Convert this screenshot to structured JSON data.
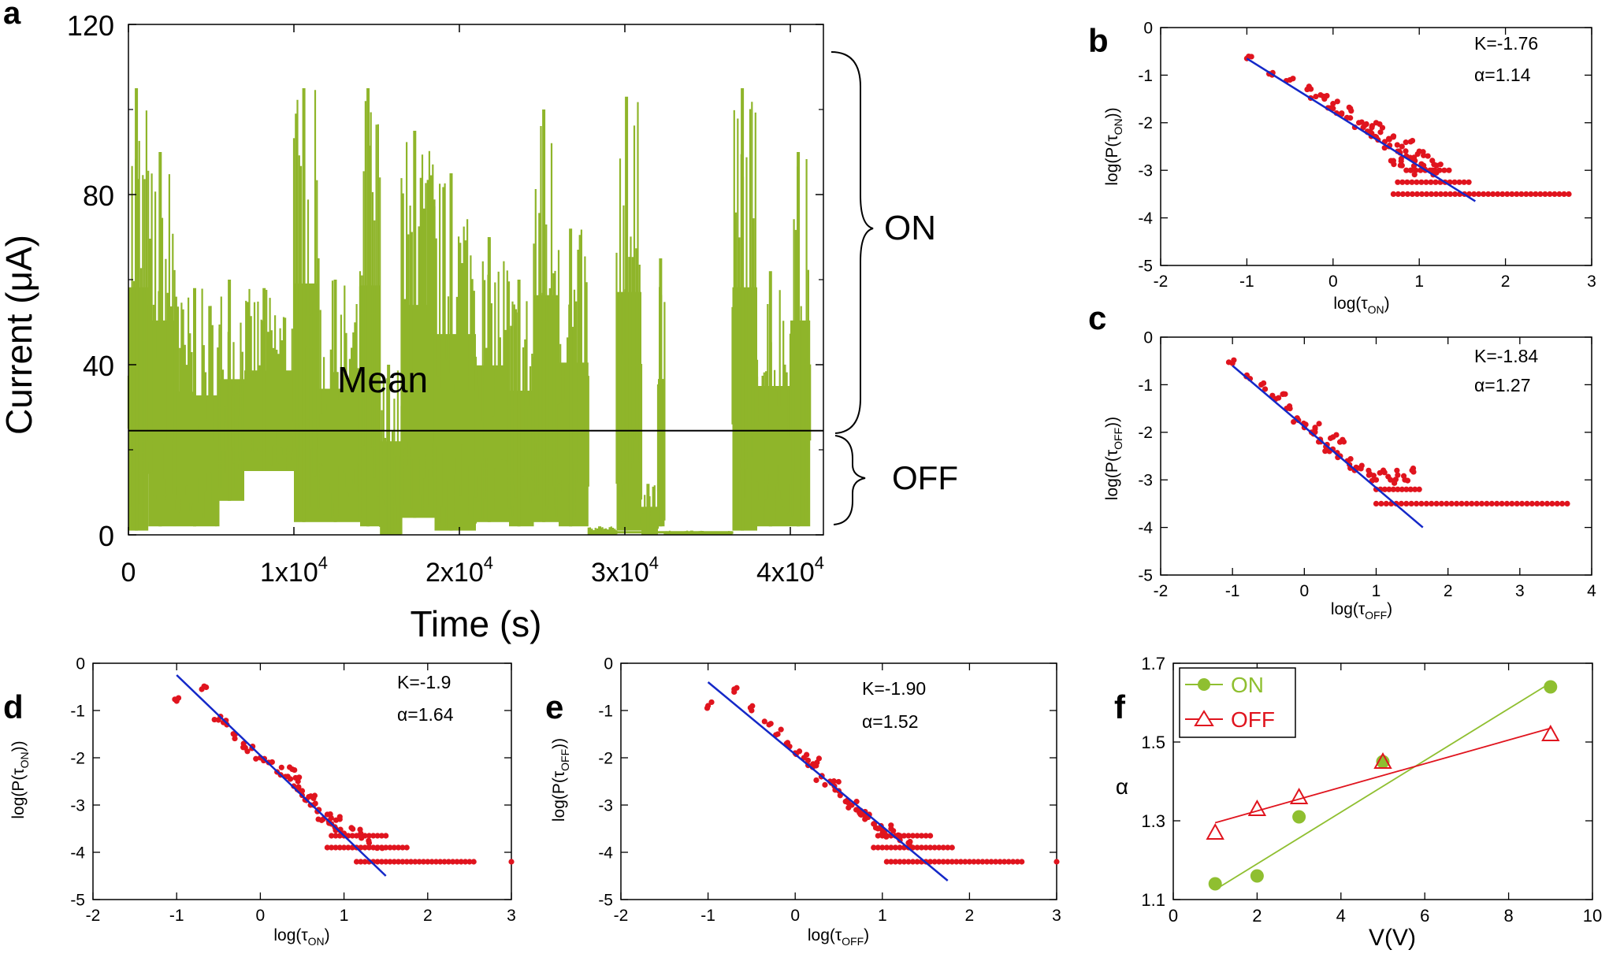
{
  "chart_data": [
    {
      "id": "a",
      "panel": "a",
      "type": "line",
      "xlabel": "Time (s)",
      "ylabel": "Current (μA)",
      "xlim": [
        0,
        42000
      ],
      "ylim": [
        0,
        120
      ],
      "xticks": [
        0,
        10000,
        20000,
        30000,
        40000
      ],
      "xtick_base": [
        "0",
        "1x10",
        "2x10",
        "3x10",
        "4x10"
      ],
      "xtick_exp": [
        "",
        "4",
        "4",
        "4",
        "4"
      ],
      "yticks": [
        0,
        40,
        80,
        120
      ],
      "ytick_labels": [
        "0",
        "40",
        "80",
        "120"
      ],
      "mean_value": 24.5,
      "mean_label": "Mean",
      "on_label": "ON",
      "off_label": "OFF",
      "color": "#8fb52a",
      "segments": [
        {
          "t0": 0,
          "t1": 1200,
          "lo": 1,
          "hi": 105
        },
        {
          "t0": 1200,
          "t1": 3000,
          "lo": 2,
          "hi": 90
        },
        {
          "t0": 3000,
          "t1": 5500,
          "lo": 2,
          "hi": 58
        },
        {
          "t0": 5500,
          "t1": 7000,
          "lo": 8,
          "hi": 60
        },
        {
          "t0": 7000,
          "t1": 10000,
          "lo": 15,
          "hi": 58
        },
        {
          "t0": 10000,
          "t1": 11500,
          "lo": 3,
          "hi": 105
        },
        {
          "t0": 11500,
          "t1": 14000,
          "lo": 3,
          "hi": 60
        },
        {
          "t0": 14000,
          "t1": 15200,
          "lo": 2,
          "hi": 105
        },
        {
          "t0": 15200,
          "t1": 16500,
          "lo": 0,
          "hi": 40
        },
        {
          "t0": 16500,
          "t1": 18500,
          "lo": 4,
          "hi": 95
        },
        {
          "t0": 18500,
          "t1": 21000,
          "lo": 1,
          "hi": 85
        },
        {
          "t0": 21000,
          "t1": 23000,
          "lo": 3,
          "hi": 70
        },
        {
          "t0": 23000,
          "t1": 24500,
          "lo": 2,
          "hi": 60
        },
        {
          "t0": 24500,
          "t1": 26000,
          "lo": 3,
          "hi": 100
        },
        {
          "t0": 26000,
          "t1": 27800,
          "lo": 2,
          "hi": 72
        },
        {
          "t0": 27800,
          "t1": 29500,
          "lo": 0,
          "hi": 2
        },
        {
          "t0": 29500,
          "t1": 31000,
          "lo": 1,
          "hi": 103
        },
        {
          "t0": 31000,
          "t1": 32000,
          "lo": 0,
          "hi": 12
        },
        {
          "t0": 32000,
          "t1": 32400,
          "lo": 2,
          "hi": 65
        },
        {
          "t0": 32400,
          "t1": 36500,
          "lo": 0,
          "hi": 1
        },
        {
          "t0": 36500,
          "t1": 38000,
          "lo": 1,
          "hi": 105
        },
        {
          "t0": 38000,
          "t1": 40000,
          "lo": 2,
          "hi": 62
        },
        {
          "t0": 40000,
          "t1": 41200,
          "lo": 2,
          "hi": 90
        }
      ]
    },
    {
      "id": "b",
      "panel": "b",
      "type": "scatter",
      "xlabel_main": "log(τ",
      "xlabel_sub": "ON",
      "xlabel_end": ")",
      "ylabel_main": "log(P(τ",
      "ylabel_sub": "ON",
      "ylabel_end": "))",
      "xlim": [
        -2,
        3
      ],
      "ylim": [
        -5,
        0
      ],
      "xticks": [
        -2,
        -1,
        0,
        1,
        2,
        3
      ],
      "xtick_labels": [
        "-2",
        "-1",
        "0",
        "1",
        "2",
        "3"
      ],
      "yticks": [
        -5,
        -4,
        -3,
        -2,
        -1,
        0
      ],
      "ytick_labels": [
        "-5",
        "-4",
        "-3",
        "-2",
        "-1",
        "0"
      ],
      "annotation_k": "K=-1.76",
      "annotation_alpha": "α=1.14",
      "fit_line": [
        [
          -1.0,
          -0.65
        ],
        [
          1.65,
          -3.65
        ]
      ],
      "point_color": "#e0141e",
      "fit_color": "#1428c8",
      "points_head": [
        [
          -1.0,
          -0.65
        ],
        [
          -0.7,
          -0.95
        ],
        [
          -0.5,
          -1.1
        ],
        [
          -0.3,
          -1.3
        ],
        [
          -0.2,
          -1.45
        ],
        [
          -0.1,
          -1.5
        ],
        [
          0.0,
          -1.7
        ],
        [
          0.1,
          -1.8
        ],
        [
          0.2,
          -1.9
        ],
        [
          0.3,
          -2.0
        ],
        [
          0.35,
          -2.1
        ],
        [
          0.4,
          -2.2
        ],
        [
          0.45,
          -2.1
        ],
        [
          0.5,
          -2.3
        ],
        [
          0.55,
          -2.2
        ],
        [
          0.6,
          -2.4
        ],
        [
          0.65,
          -2.5
        ],
        [
          0.7,
          -2.3
        ],
        [
          0.75,
          -2.6
        ],
        [
          0.8,
          -2.5
        ],
        [
          0.85,
          -2.7
        ],
        [
          0.9,
          -2.4
        ],
        [
          0.95,
          -2.8
        ],
        [
          1.0,
          -2.6
        ],
        [
          1.05,
          -2.9
        ],
        [
          1.1,
          -2.7
        ],
        [
          1.15,
          -3.0
        ],
        [
          1.2,
          -2.9
        ],
        [
          0.8,
          -2.9
        ],
        [
          0.9,
          -3.0
        ],
        [
          0.7,
          -2.8
        ],
        [
          0.2,
          -1.7
        ],
        [
          0.5,
          -2.0
        ],
        [
          0.0,
          -1.6
        ]
      ],
      "bands": [
        {
          "y": -3.5,
          "x0": 0.7,
          "x1": 2.75,
          "step": 0.055
        },
        {
          "y": -3.25,
          "x0": 0.75,
          "x1": 1.6,
          "step": 0.055
        },
        {
          "y": -3.0,
          "x0": 0.85,
          "x1": 1.35,
          "step": 0.055
        }
      ]
    },
    {
      "id": "c",
      "panel": "c",
      "type": "scatter",
      "xlabel_main": "log(τ",
      "xlabel_sub": "OFF",
      "xlabel_end": ")",
      "ylabel_main": "log(P(τ",
      "ylabel_sub": "OFF",
      "ylabel_end": "))",
      "xlim": [
        -2,
        4
      ],
      "ylim": [
        -5,
        0
      ],
      "xticks": [
        -2,
        -1,
        0,
        1,
        2,
        3,
        4
      ],
      "xtick_labels": [
        "-2",
        "-1",
        "0",
        "1",
        "2",
        "3",
        "4"
      ],
      "yticks": [
        -5,
        -4,
        -3,
        -2,
        -1,
        0
      ],
      "ytick_labels": [
        "-5",
        "-4",
        "-3",
        "-2",
        "-1",
        "0"
      ],
      "annotation_k": "K=-1.84",
      "annotation_alpha": "α=1.27",
      "fit_line": [
        [
          -1.0,
          -0.6
        ],
        [
          1.65,
          -4.0
        ]
      ],
      "point_color": "#e0141e",
      "fit_color": "#1428c8",
      "points_head": [
        [
          -1.0,
          -0.55
        ],
        [
          -0.8,
          -0.8
        ],
        [
          -0.6,
          -1.0
        ],
        [
          -0.4,
          -1.3
        ],
        [
          -0.2,
          -1.5
        ],
        [
          -0.1,
          -1.7
        ],
        [
          0.0,
          -1.9
        ],
        [
          0.1,
          -2.0
        ],
        [
          0.2,
          -2.2
        ],
        [
          0.3,
          -2.3
        ],
        [
          0.4,
          -2.1
        ],
        [
          0.5,
          -2.5
        ],
        [
          0.6,
          -2.6
        ],
        [
          0.7,
          -2.8
        ],
        [
          0.8,
          -2.7
        ],
        [
          0.9,
          -2.9
        ],
        [
          1.0,
          -3.0
        ],
        [
          1.1,
          -2.8
        ],
        [
          1.2,
          -3.0
        ],
        [
          1.3,
          -2.9
        ],
        [
          1.4,
          -3.0
        ],
        [
          1.5,
          -2.8
        ],
        [
          0.35,
          -2.4
        ],
        [
          0.55,
          -2.2
        ],
        [
          0.15,
          -1.9
        ],
        [
          -0.3,
          -1.2
        ]
      ],
      "bands": [
        {
          "y": -3.5,
          "x0": 1.0,
          "x1": 3.7,
          "step": 0.07
        },
        {
          "y": -3.2,
          "x0": 1.0,
          "x1": 1.65,
          "step": 0.06
        }
      ]
    },
    {
      "id": "d",
      "panel": "d",
      "type": "scatter",
      "xlabel_main": "log(τ",
      "xlabel_sub": "ON",
      "xlabel_end": ")",
      "ylabel_main": "log(P(τ",
      "ylabel_sub": "ON",
      "ylabel_end": "))",
      "xlim": [
        -2,
        3
      ],
      "ylim": [
        -5,
        0
      ],
      "xticks": [
        -2,
        -1,
        0,
        1,
        2,
        3
      ],
      "xtick_labels": [
        "-2",
        "-1",
        "0",
        "1",
        "2",
        "3"
      ],
      "yticks": [
        -5,
        -4,
        -3,
        -2,
        -1,
        0
      ],
      "ytick_labels": [
        "-5",
        "-4",
        "-3",
        "-2",
        "-1",
        "0"
      ],
      "annotation_k": "K=-1.9",
      "annotation_alpha": "α=1.64",
      "fit_line": [
        [
          -1.0,
          -0.25
        ],
        [
          1.5,
          -4.5
        ]
      ],
      "point_color": "#e0141e",
      "fit_color": "#1428c8",
      "points_head": [
        [
          -1.0,
          -0.8
        ],
        [
          -0.7,
          -0.55
        ],
        [
          -0.5,
          -1.2
        ],
        [
          -0.4,
          -1.3
        ],
        [
          -0.3,
          -1.5
        ],
        [
          -0.2,
          -1.7
        ],
        [
          -0.1,
          -1.8
        ],
        [
          0.0,
          -2.0
        ],
        [
          0.1,
          -2.1
        ],
        [
          0.2,
          -2.3
        ],
        [
          0.3,
          -2.4
        ],
        [
          0.4,
          -2.6
        ],
        [
          0.5,
          -2.7
        ],
        [
          0.55,
          -2.9
        ],
        [
          0.6,
          -3.0
        ],
        [
          0.7,
          -3.1
        ],
        [
          0.75,
          -3.3
        ],
        [
          0.8,
          -3.2
        ],
        [
          0.85,
          -3.4
        ],
        [
          0.9,
          -3.5
        ],
        [
          0.95,
          -3.3
        ],
        [
          1.0,
          -3.6
        ],
        [
          1.1,
          -3.5
        ],
        [
          1.2,
          -3.6
        ],
        [
          1.3,
          -3.8
        ],
        [
          1.4,
          -3.9
        ],
        [
          0.65,
          -2.8
        ],
        [
          0.35,
          -2.2
        ],
        [
          0.45,
          -2.5
        ]
      ],
      "bands": [
        {
          "y": -4.2,
          "x0": 1.15,
          "x1": 2.55,
          "step": 0.05
        },
        {
          "y": -3.9,
          "x0": 0.8,
          "x1": 1.75,
          "step": 0.05
        },
        {
          "y": -3.65,
          "x0": 0.85,
          "x1": 1.5,
          "step": 0.05
        }
      ],
      "extra_points": [
        [
          3.0,
          -4.2
        ]
      ]
    },
    {
      "id": "e",
      "panel": "e",
      "type": "scatter",
      "xlabel_main": "log(τ",
      "xlabel_sub": "OFF",
      "xlabel_end": ")",
      "ylabel_main": "log(P(τ",
      "ylabel_sub": "OFF",
      "ylabel_end": "))",
      "xlim": [
        -2,
        3
      ],
      "ylim": [
        -5,
        0
      ],
      "xticks": [
        -2,
        -1,
        0,
        1,
        2,
        3
      ],
      "xtick_labels": [
        "-2",
        "-1",
        "0",
        "1",
        "2",
        "3"
      ],
      "yticks": [
        -5,
        -4,
        -3,
        -2,
        -1,
        0
      ],
      "ytick_labels": [
        "-5",
        "-4",
        "-3",
        "-2",
        "-1",
        "0"
      ],
      "annotation_k": "K=-1.90",
      "annotation_alpha": "α=1.52",
      "fit_line": [
        [
          -1.0,
          -0.4
        ],
        [
          1.75,
          -4.6
        ]
      ],
      "point_color": "#e0141e",
      "fit_color": "#1428c8",
      "points_head": [
        [
          -1.0,
          -0.9
        ],
        [
          -0.7,
          -0.55
        ],
        [
          -0.5,
          -1.0
        ],
        [
          -0.3,
          -1.3
        ],
        [
          -0.2,
          -1.5
        ],
        [
          -0.1,
          -1.7
        ],
        [
          0.0,
          -1.9
        ],
        [
          0.1,
          -2.0
        ],
        [
          0.2,
          -2.2
        ],
        [
          0.3,
          -2.4
        ],
        [
          0.4,
          -2.5
        ],
        [
          0.5,
          -2.7
        ],
        [
          0.6,
          -2.9
        ],
        [
          0.7,
          -3.1
        ],
        [
          0.75,
          -3.2
        ],
        [
          0.8,
          -3.3
        ],
        [
          0.85,
          -3.2
        ],
        [
          0.9,
          -3.4
        ],
        [
          0.95,
          -3.5
        ],
        [
          1.0,
          -3.6
        ],
        [
          1.1,
          -3.5
        ],
        [
          1.2,
          -3.7
        ],
        [
          1.3,
          -3.8
        ],
        [
          0.45,
          -2.6
        ],
        [
          0.65,
          -3.0
        ],
        [
          0.25,
          -2.1
        ]
      ],
      "bands": [
        {
          "y": -4.2,
          "x0": 1.05,
          "x1": 2.6,
          "step": 0.05
        },
        {
          "y": -3.9,
          "x0": 0.9,
          "x1": 1.8,
          "step": 0.05
        },
        {
          "y": -3.65,
          "x0": 0.95,
          "x1": 1.55,
          "step": 0.05
        }
      ],
      "extra_points": [
        [
          3.0,
          -4.2
        ]
      ]
    },
    {
      "id": "f",
      "panel": "f",
      "type": "scatter",
      "xlabel": "V(V)",
      "ylabel": "α",
      "xlim": [
        0,
        10
      ],
      "ylim": [
        1.1,
        1.7
      ],
      "xticks": [
        0,
        2,
        4,
        6,
        8,
        10
      ],
      "xtick_labels": [
        "0",
        "2",
        "4",
        "6",
        "8",
        "10"
      ],
      "yticks": [
        1.1,
        1.3,
        1.5,
        1.7
      ],
      "ytick_labels": [
        "1.1",
        "1.3",
        "1.5",
        "1.7"
      ],
      "legend_position": "top-left",
      "series": [
        {
          "name": "ON",
          "color": "#8fbf30",
          "marker": "circle",
          "x": [
            1,
            2,
            3,
            5,
            9
          ],
          "y": [
            1.14,
            1.16,
            1.31,
            1.45,
            1.64
          ],
          "fit": [
            [
              1,
              1.125
            ],
            [
              9,
              1.65
            ]
          ]
        },
        {
          "name": "OFF",
          "color": "#e0141e",
          "marker": "triangle",
          "x": [
            1,
            2,
            3,
            5,
            9
          ],
          "y": [
            1.27,
            1.33,
            1.36,
            1.45,
            1.52
          ],
          "fit": [
            [
              1,
              1.295
            ],
            [
              9,
              1.535
            ]
          ]
        }
      ]
    }
  ]
}
